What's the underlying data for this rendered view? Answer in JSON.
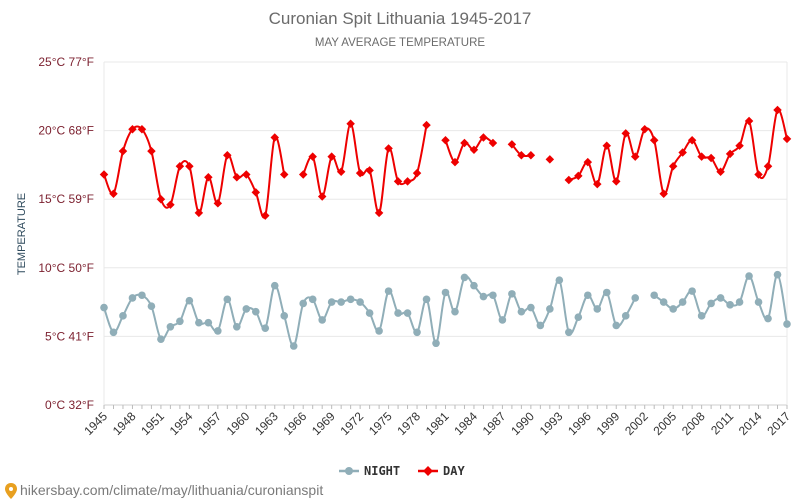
{
  "chart_data": {
    "type": "line",
    "title": "Curonian Spit Lithuania 1945-2017",
    "subtitle": "MAY AVERAGE TEMPERATURE",
    "ylabel": "TEMPERATURE",
    "xlabel": "",
    "y_ticks": [
      {
        "value": 0,
        "label": "0°C 32°F"
      },
      {
        "value": 5,
        "label": "5°C 41°F"
      },
      {
        "value": 10,
        "label": "10°C 50°F"
      },
      {
        "value": 15,
        "label": "15°C 59°F"
      },
      {
        "value": 20,
        "label": "20°C 68°F"
      },
      {
        "value": 25,
        "label": "25°C 77°F"
      }
    ],
    "ylim": [
      0,
      25
    ],
    "x_tick_labels": [
      "1945",
      "1948",
      "1951",
      "1954",
      "1957",
      "1960",
      "1963",
      "1966",
      "1969",
      "1972",
      "1975",
      "1978",
      "1981",
      "1984",
      "1987",
      "1990",
      "1993",
      "1996",
      "1999",
      "2002",
      "2005",
      "2008",
      "2011",
      "2014",
      "2017"
    ],
    "grid": true,
    "legend_position": "bottom",
    "x": [
      1945,
      1946,
      1947,
      1948,
      1949,
      1950,
      1951,
      1952,
      1953,
      1954,
      1955,
      1956,
      1957,
      1958,
      1959,
      1960,
      1961,
      1962,
      1963,
      1964,
      1965,
      1966,
      1967,
      1968,
      1969,
      1970,
      1971,
      1972,
      1973,
      1974,
      1975,
      1976,
      1977,
      1978,
      1979,
      1980,
      1981,
      1982,
      1983,
      1984,
      1985,
      1986,
      1987,
      1988,
      1989,
      1990,
      1991,
      1992,
      1993,
      1994,
      1995,
      1996,
      1997,
      1998,
      1999,
      2000,
      2001,
      2002,
      2003,
      2004,
      2005,
      2006,
      2007,
      2008,
      2009,
      2010,
      2011,
      2012,
      2013,
      2014,
      2015,
      2016,
      2017
    ],
    "series": [
      {
        "name": "NIGHT",
        "color": "#90aeb8",
        "values": [
          7.1,
          5.3,
          6.5,
          7.8,
          8.0,
          7.2,
          4.8,
          5.7,
          6.1,
          7.6,
          6.0,
          6.0,
          5.4,
          7.7,
          5.7,
          7.0,
          6.8,
          5.6,
          8.7,
          6.5,
          4.3,
          7.4,
          7.7,
          6.2,
          7.5,
          7.5,
          7.7,
          7.5,
          6.7,
          5.4,
          8.3,
          6.7,
          6.7,
          5.3,
          7.7,
          4.5,
          8.2,
          6.8,
          9.3,
          8.7,
          7.9,
          8.0,
          6.2,
          8.1,
          6.8,
          7.1,
          5.8,
          7.0,
          9.1,
          5.3,
          6.4,
          8.0,
          7.0,
          8.2,
          5.8,
          6.5,
          7.8,
          null,
          8.0,
          7.5,
          7.0,
          7.5,
          8.3,
          6.5,
          7.4,
          7.8,
          7.3,
          7.5,
          9.4,
          7.5,
          6.3,
          9.5,
          5.9
        ]
      },
      {
        "name": "DAY",
        "color": "#ee0000",
        "values": [
          16.8,
          15.4,
          18.5,
          20.1,
          20.1,
          18.5,
          15.0,
          14.6,
          17.4,
          17.4,
          14.0,
          16.6,
          14.7,
          18.2,
          16.6,
          16.8,
          15.5,
          13.8,
          19.5,
          16.8,
          null,
          16.8,
          18.1,
          15.2,
          18.1,
          17.0,
          20.5,
          16.9,
          17.1,
          14.0,
          18.7,
          16.3,
          16.3,
          16.9,
          20.4,
          null,
          19.3,
          17.7,
          19.1,
          18.6,
          19.5,
          19.1,
          null,
          19.0,
          18.2,
          18.2,
          null,
          17.9,
          null,
          16.4,
          16.7,
          17.7,
          16.1,
          18.9,
          16.3,
          19.8,
          18.1,
          20.1,
          19.3,
          15.4,
          17.4,
          18.4,
          19.3,
          18.1,
          18.0,
          17.0,
          18.3,
          18.9,
          20.7,
          16.8,
          17.4,
          21.5,
          19.4
        ]
      }
    ]
  },
  "watermark": {
    "text": "hikersbay.com/climate/may/lithuania/curonianspit"
  }
}
